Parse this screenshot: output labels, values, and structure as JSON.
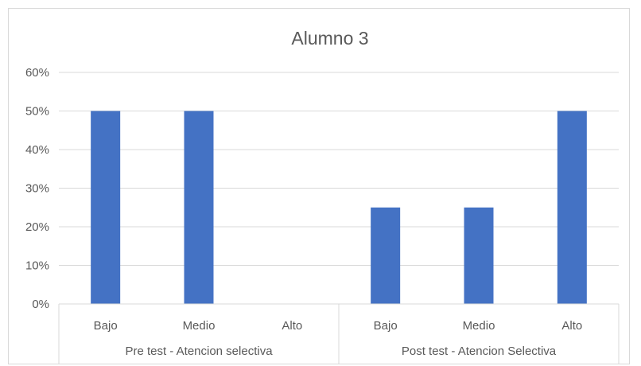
{
  "chart_data": {
    "type": "bar",
    "title": "Alumno 3",
    "groups": [
      {
        "label": "Pre test - Atencion selectiva",
        "categories": [
          "Bajo",
          "Medio",
          "Alto"
        ],
        "values": [
          50,
          50,
          0
        ]
      },
      {
        "label": "Post test - Atencion Selectiva",
        "categories": [
          "Bajo",
          "Medio",
          "Alto"
        ],
        "values": [
          25,
          25,
          50
        ]
      }
    ],
    "ylim": [
      0,
      60
    ],
    "yticks": [
      "0%",
      "10%",
      "20%",
      "30%",
      "40%",
      "50%",
      "60%"
    ],
    "y_unit": "%",
    "grid": true,
    "legend": "none",
    "colors": {
      "bar": "#4472C4",
      "grid": "#d9d9d9",
      "text": "#595959"
    }
  }
}
